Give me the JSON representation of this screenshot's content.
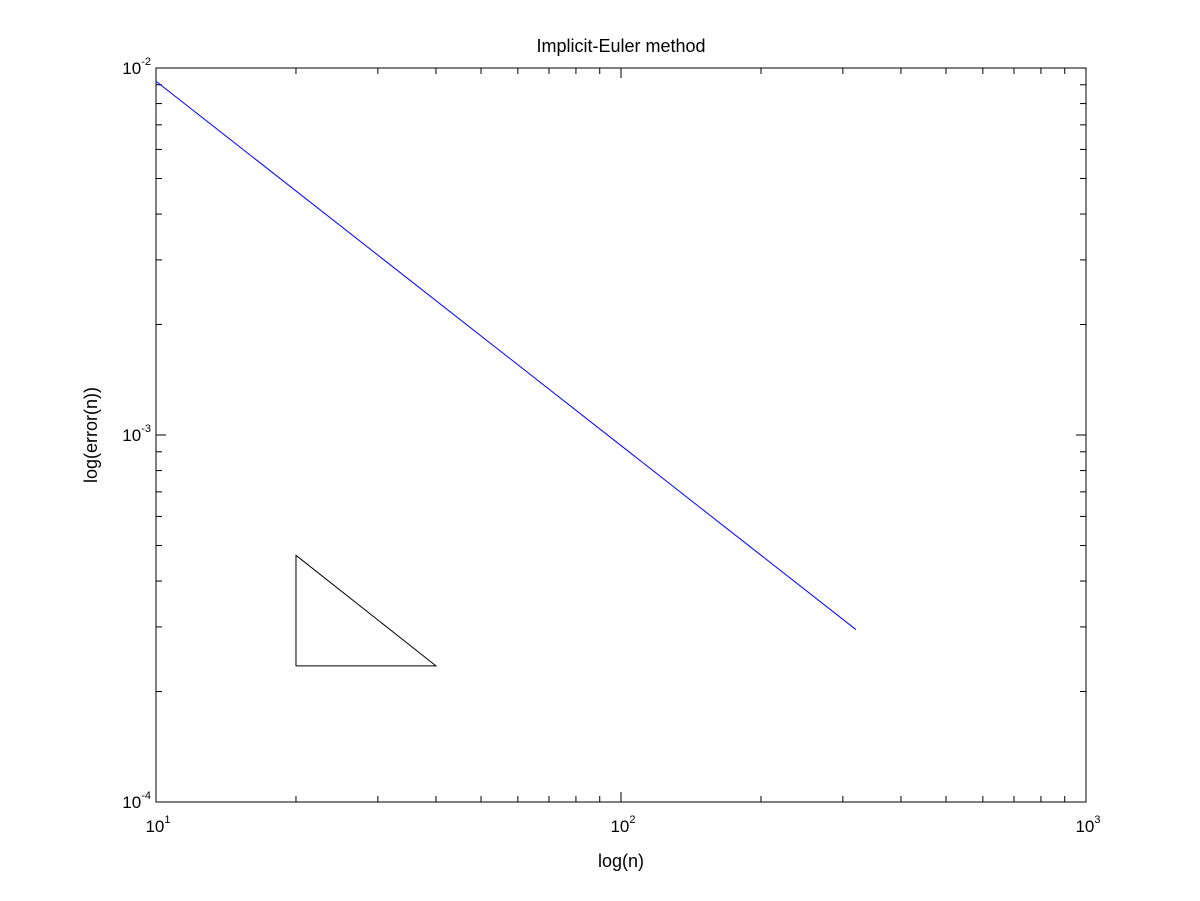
{
  "chart_data": {
    "type": "line",
    "title": "Implicit-Euler method",
    "xlabel": "log(n)",
    "ylabel": "log(error(n))",
    "x_scale": "log",
    "y_scale": "log",
    "xlim": [
      10,
      1000
    ],
    "ylim": [
      0.0001,
      0.01
    ],
    "grid": false,
    "x_ticks": [
      {
        "value": 10,
        "base": "10",
        "exp": "1"
      },
      {
        "value": 100,
        "base": "10",
        "exp": "2"
      },
      {
        "value": 1000,
        "base": "10",
        "exp": "3"
      }
    ],
    "y_ticks": [
      {
        "value": 0.0001,
        "base": "10",
        "exp": "-4"
      },
      {
        "value": 0.001,
        "base": "10",
        "exp": "-3"
      },
      {
        "value": 0.01,
        "base": "10",
        "exp": "-2"
      }
    ],
    "series": [
      {
        "color": "#0000ff",
        "x": [
          10,
          320
        ],
        "y": [
          0.0092,
          0.000295
        ]
      }
    ],
    "annotations": [
      {
        "type": "slope-triangle",
        "color": "#000000",
        "points": [
          [
            20,
            0.00047
          ],
          [
            20,
            0.000235
          ],
          [
            40,
            0.000235
          ]
        ]
      }
    ]
  }
}
